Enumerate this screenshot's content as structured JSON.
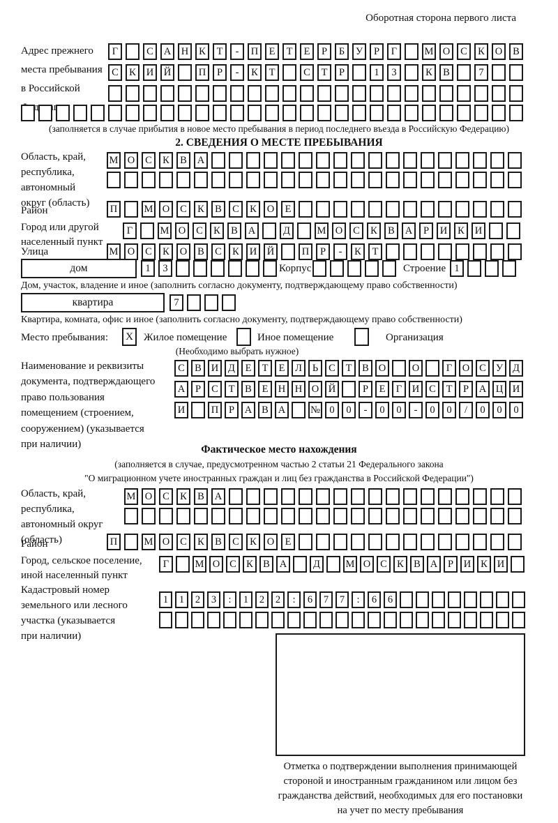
{
  "header_note": "Оборотная сторона первого листа",
  "prev_address": {
    "label": "Адрес прежнего\nместа пребывания\nв Российской\nФедерации",
    "row1": {
      "values": [
        "Г",
        "",
        "С",
        "А",
        "Н",
        "К",
        "Т",
        "-",
        "П",
        "Е",
        "Т",
        "Е",
        "Р",
        "Б",
        "У",
        "Р",
        "Г",
        "",
        "М",
        "О",
        "С",
        "К",
        "О",
        "В"
      ],
      "total": 24
    },
    "row2": {
      "values": [
        "С",
        "К",
        "И",
        "Й",
        "",
        "П",
        "Р",
        "-",
        "К",
        "Т",
        "",
        "С",
        "Т",
        "Р",
        "",
        "1",
        "3",
        "",
        "К",
        "В",
        "",
        "7"
      ],
      "total": 24
    },
    "row3": {
      "values": [],
      "total": 24
    },
    "row4": {
      "values": [],
      "total": 29
    },
    "note": "(заполняется в случае прибытия в новое место пребывания в период последнего въезда в Российскую Федерацию)"
  },
  "section2": {
    "title": "2. СВЕДЕНИЯ О МЕСТЕ ПРЕБЫВАНИЯ",
    "region": {
      "label": "Область, край,\nреспублика,\nавтономный\nокруг (область)",
      "row1": {
        "values": [
          "М",
          "О",
          "С",
          "К",
          "В",
          "А"
        ],
        "total": 24
      },
      "row2": {
        "values": [],
        "total": 24
      }
    },
    "district": {
      "label": "Район",
      "row": {
        "values": [
          "П",
          "",
          "М",
          "О",
          "С",
          "К",
          "В",
          "С",
          "К",
          "О",
          "Е"
        ],
        "total": 24
      }
    },
    "city": {
      "label": "Город или другой\nнаселенный пункт",
      "row": {
        "values": [
          "Г",
          "",
          "М",
          "О",
          "С",
          "К",
          "В",
          "А",
          "",
          "Д",
          "",
          "М",
          "О",
          "С",
          "К",
          "В",
          "А",
          "Р",
          "И",
          "К",
          "И"
        ],
        "total": 23
      }
    },
    "street": {
      "label": "Улица",
      "row": {
        "values": [
          "М",
          "О",
          "С",
          "К",
          "О",
          "В",
          "С",
          "К",
          "И",
          "Й",
          "",
          "П",
          "Р",
          "-",
          "К",
          "Т"
        ],
        "total": 24
      }
    },
    "house": {
      "box_label": "дом",
      "cells": {
        "values": [
          "1",
          "3"
        ],
        "total": 8
      },
      "korpus_label": "Корпус",
      "korpus_cells": {
        "values": [],
        "total": 5
      },
      "stroenie_label": "Строение",
      "stroenie_cells": {
        "values": [
          "1"
        ],
        "total": 4
      },
      "note": "Дом, участок, владение и иное (заполнить согласно документу, подтверждающему право собственности)"
    },
    "apartment": {
      "box_label": "квартира",
      "cells": {
        "values": [
          "7"
        ],
        "total": 4
      },
      "note": "Квартира, комната, офис и иное (заполнить согласно документу, подтверждающему право собственности)"
    },
    "stay_type": {
      "label": "Место пребывания:",
      "options": [
        {
          "label": "Жилое помещение",
          "mark": "X"
        },
        {
          "label": "Иное помещение",
          "mark": ""
        },
        {
          "label": "Организация",
          "mark": ""
        }
      ],
      "note": "(Необходимо выбрать нужное)"
    },
    "document": {
      "label": "Наименование и реквизиты\nдокумента, подтверждающего\nправо пользования\nпомещением (строением,\nсооружением) (указывается\nпри наличии)",
      "row1": {
        "values": [
          "С",
          "В",
          "И",
          "Д",
          "Е",
          "Т",
          "Е",
          "Л",
          "Ь",
          "С",
          "Т",
          "В",
          "О",
          "",
          "О",
          "",
          "Г",
          "О",
          "С",
          "У",
          "Д"
        ],
        "total": 21
      },
      "row2": {
        "values": [
          "А",
          "Р",
          "С",
          "Т",
          "В",
          "Е",
          "Н",
          "Н",
          "О",
          "Й",
          "",
          "Р",
          "Е",
          "Г",
          "И",
          "С",
          "Т",
          "Р",
          "А",
          "Ц",
          "И"
        ],
        "total": 21
      },
      "row3": {
        "values": [
          "И",
          "",
          "П",
          "Р",
          "А",
          "В",
          "А",
          "",
          "№",
          "0",
          "0",
          "-",
          "0",
          "0",
          "-",
          "0",
          "0",
          "/",
          "0",
          "0",
          "0"
        ],
        "total": 21
      }
    }
  },
  "actual_location": {
    "title": "Фактическое место нахождения",
    "note_line1": "(заполняется в случае, предусмотренном частью 2 статьи 21 Федерального закона",
    "note_line2": "\"О миграционном учете иностранных граждан и лиц без гражданства в Российской Федерации\")",
    "region": {
      "label": "Область, край,\nреспублика,\nавтономный округ\n(область)",
      "row1": {
        "values": [
          "М",
          "О",
          "С",
          "К",
          "В",
          "А"
        ],
        "total": 23
      },
      "row2": {
        "values": [],
        "total": 23
      }
    },
    "district": {
      "label": "Район",
      "row": {
        "values": [
          "П",
          "",
          "М",
          "О",
          "С",
          "К",
          "В",
          "С",
          "К",
          "О",
          "Е"
        ],
        "total": 24
      }
    },
    "city": {
      "label": "Город, сельское поселение,\nиной населенный пункт",
      "row": {
        "values": [
          "Г",
          "",
          "М",
          "О",
          "С",
          "К",
          "В",
          "А",
          "",
          "Д",
          "",
          "М",
          "О",
          "С",
          "К",
          "В",
          "А",
          "Р",
          "И",
          "К",
          "И"
        ],
        "total": 22
      }
    },
    "cadastral": {
      "label": "Кадастровый номер\nземельного или лесного\nучастка (указывается\nпри наличии)",
      "row1": {
        "values": [
          "1",
          "1",
          "2",
          "3",
          ":",
          "1",
          "2",
          "2",
          ":",
          "6",
          "7",
          "7",
          ":",
          "6",
          "6"
        ],
        "total": 23
      },
      "row2": {
        "values": [],
        "total": 23
      }
    },
    "stamp_note": "Отметка о подтверждении выполнения принимающей\nстороной и иностранным гражданином или лицом без\nгражданства действий, необходимых для его постановки\nна учет по месту пребывания"
  }
}
